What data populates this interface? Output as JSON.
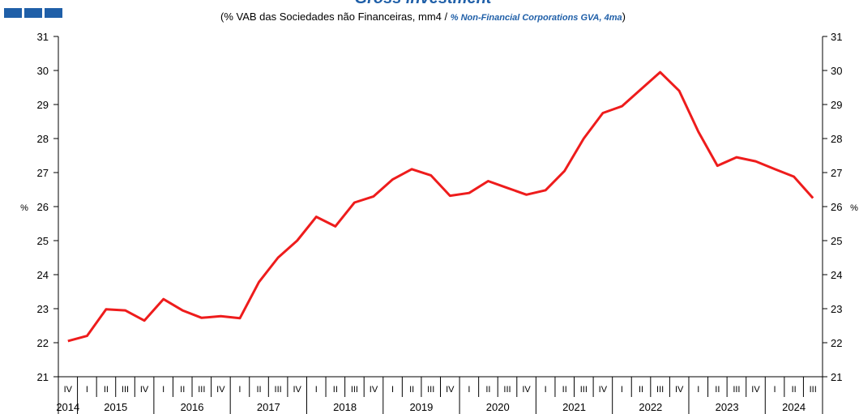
{
  "chart_data": {
    "type": "line",
    "title": "Gross investment",
    "subtitle": [
      "(% VAB das Sociedades não Financeiras, mm4 /",
      "% Non-Financial Corporations GVA, 4ma",
      ")"
    ],
    "ylabel": "%",
    "y2label": "%",
    "categories": [
      "IV",
      "I",
      "II",
      "III",
      "IV",
      "I",
      "II",
      "III",
      "IV",
      "I",
      "II",
      "III",
      "IV",
      "I",
      "II",
      "III",
      "IV",
      "I",
      "II",
      "III",
      "IV",
      "I",
      "II",
      "III",
      "IV",
      "I",
      "II",
      "III",
      "IV",
      "I",
      "II",
      "III",
      "IV",
      "I",
      "II",
      "III",
      "IV",
      "I",
      "II",
      "III"
    ],
    "category_years": [
      "2014",
      "2015",
      null,
      null,
      null,
      "2016",
      null,
      null,
      null,
      "2017",
      null,
      null,
      null,
      "2018",
      null,
      null,
      null,
      "2019",
      null,
      null,
      null,
      "2020",
      null,
      null,
      null,
      "2021",
      null,
      null,
      null,
      "2022",
      null,
      null,
      null,
      "2023",
      null,
      null,
      null,
      "2024",
      null,
      null
    ],
    "series": [
      {
        "name": "Gross investment",
        "color": "#ee1c1c",
        "values": [
          22.05,
          22.2,
          22.98,
          22.95,
          22.65,
          23.28,
          22.95,
          22.73,
          22.78,
          22.72,
          23.78,
          24.5,
          25.0,
          25.7,
          25.42,
          26.12,
          26.3,
          26.8,
          27.1,
          26.92,
          26.32,
          26.4,
          26.75,
          26.55,
          26.35,
          26.48,
          27.05,
          28.0,
          28.75,
          28.95,
          29.45,
          29.95,
          29.4,
          28.2,
          27.2,
          27.45,
          27.33,
          27.1,
          26.88,
          26.25
        ]
      }
    ],
    "ylim": [
      21,
      31
    ],
    "yticks": [
      21,
      22,
      23,
      24,
      25,
      26,
      27,
      28,
      29,
      30,
      31
    ],
    "y2lim": [
      21,
      31
    ],
    "y2ticks": [
      21,
      22,
      23,
      24,
      25,
      26,
      27,
      28,
      29,
      30,
      31
    ]
  }
}
